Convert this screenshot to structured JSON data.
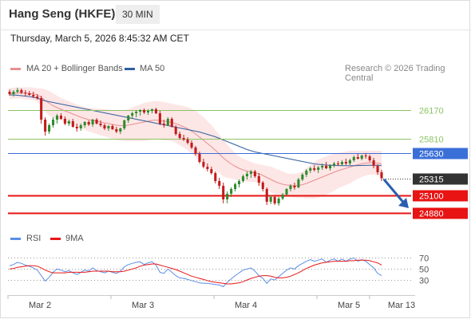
{
  "header": {
    "title": "Hang Seng (HKFE)",
    "timeframe": "30 MIN",
    "datetime": "Thursday, March 5, 2026 8:45:32 AM CET"
  },
  "colors": {
    "ma20": "#e88f8f",
    "bollinger_fill": "#fde3e3",
    "ma50": "#2f5e9e",
    "rsi": "#5b8ee6",
    "rsi_9ma": "#e81717",
    "bull_candle": "#2e8b2e",
    "bear_candle": "#c21b1b",
    "resistance": "#8cc463",
    "pivot": "#3b6fd8",
    "support": "#e81313",
    "last_price_tag": "#333333"
  },
  "legend": {
    "ma20_label": "MA 20 + Bollinger Bands",
    "ma50_label": "MA 50",
    "copyright": "Research © 2026 Trading Central"
  },
  "rsi_legend": {
    "rsi_label": "RSI",
    "ma_label": "9MA"
  },
  "chart_data": [
    {
      "type": "candlestick",
      "instrument": "Hang Seng (HKFE)",
      "interval": "30 MIN",
      "x_ticks": [
        "Mar 2",
        "Mar 3",
        "Mar 4",
        "Mar 5",
        "Mar 13"
      ],
      "ylim": [
        24700,
        26450
      ],
      "levels": [
        {
          "label": "26170",
          "value": 26170,
          "kind": "resistance"
        },
        {
          "label": "25810",
          "value": 25810,
          "kind": "resistance"
        },
        {
          "label": "25630",
          "value": 25630,
          "kind": "pivot"
        },
        {
          "label": "25315",
          "value": 25315,
          "kind": "last"
        },
        {
          "label": "25100",
          "value": 25100,
          "kind": "support"
        },
        {
          "label": "24880",
          "value": 24880,
          "kind": "support"
        }
      ],
      "forecast_arrow": {
        "from": 25300,
        "to": 24940
      },
      "candles_ohlc": [
        [
          26400,
          26430,
          26350,
          26370
        ],
        [
          26370,
          26420,
          26340,
          26400
        ],
        [
          26400,
          26450,
          26380,
          26420
        ],
        [
          26420,
          26440,
          26370,
          26390
        ],
        [
          26390,
          26420,
          26340,
          26380
        ],
        [
          26380,
          26410,
          26350,
          26360
        ],
        [
          26360,
          26400,
          26320,
          26340
        ],
        [
          26340,
          26370,
          26300,
          26320
        ],
        [
          26320,
          26350,
          26000,
          26050
        ],
        [
          26050,
          26080,
          25850,
          25900
        ],
        [
          25900,
          26000,
          25870,
          25980
        ],
        [
          25980,
          26080,
          25950,
          26050
        ],
        [
          26050,
          26120,
          26000,
          26100
        ],
        [
          26100,
          26130,
          26050,
          26060
        ],
        [
          26060,
          26090,
          25980,
          26000
        ],
        [
          26000,
          26050,
          25970,
          26030
        ],
        [
          26030,
          26060,
          25950,
          25960
        ],
        [
          25960,
          26000,
          25900,
          25940
        ],
        [
          25940,
          26000,
          25910,
          25980
        ],
        [
          25980,
          26030,
          25950,
          26020
        ],
        [
          26020,
          26040,
          25970,
          25990
        ],
        [
          25990,
          26060,
          25960,
          26050
        ],
        [
          26050,
          26070,
          25990,
          26000
        ],
        [
          26000,
          26040,
          25960,
          25980
        ],
        [
          25980,
          26000,
          25920,
          25940
        ],
        [
          25940,
          25980,
          25910,
          25970
        ],
        [
          25970,
          25990,
          25920,
          25930
        ],
        [
          25930,
          25960,
          25880,
          25900
        ],
        [
          25900,
          25950,
          25870,
          25940
        ],
        [
          25940,
          26050,
          25920,
          26040
        ],
        [
          26040,
          26110,
          26010,
          26100
        ],
        [
          26100,
          26150,
          26060,
          26130
        ],
        [
          26130,
          26170,
          26080,
          26150
        ],
        [
          26150,
          26180,
          26100,
          26170
        ],
        [
          26170,
          26190,
          26120,
          26140
        ],
        [
          26140,
          26180,
          26110,
          26160
        ],
        [
          26160,
          26190,
          26130,
          26180
        ],
        [
          26180,
          26200,
          26120,
          26130
        ],
        [
          26130,
          26160,
          25980,
          26000
        ],
        [
          26000,
          26050,
          25950,
          25980
        ],
        [
          25980,
          26080,
          25970,
          26060
        ],
        [
          26060,
          26080,
          25950,
          25960
        ],
        [
          25960,
          25980,
          25850,
          25870
        ],
        [
          25870,
          25900,
          25800,
          25820
        ],
        [
          25820,
          25860,
          25780,
          25800
        ],
        [
          25800,
          25830,
          25740,
          25760
        ],
        [
          25760,
          25790,
          25680,
          25700
        ],
        [
          25700,
          25720,
          25600,
          25620
        ],
        [
          25620,
          25650,
          25500,
          25520
        ],
        [
          25520,
          25560,
          25440,
          25460
        ],
        [
          25460,
          25500,
          25400,
          25430
        ],
        [
          25430,
          25460,
          25360,
          25380
        ],
        [
          25380,
          25400,
          25250,
          25280
        ],
        [
          25280,
          25320,
          25180,
          25220
        ],
        [
          25220,
          25260,
          25000,
          25050
        ],
        [
          25050,
          25150,
          25000,
          25120
        ],
        [
          25120,
          25200,
          25080,
          25180
        ],
        [
          25180,
          25260,
          25150,
          25240
        ],
        [
          25240,
          25300,
          25200,
          25280
        ],
        [
          25280,
          25360,
          25260,
          25340
        ],
        [
          25340,
          25400,
          25300,
          25370
        ],
        [
          25370,
          25420,
          25320,
          25400
        ],
        [
          25400,
          25420,
          25320,
          25340
        ],
        [
          25340,
          25380,
          25220,
          25260
        ],
        [
          25260,
          25280,
          25150,
          25180
        ],
        [
          25180,
          25200,
          24980,
          25020
        ],
        [
          25020,
          25100,
          24990,
          25080
        ],
        [
          25080,
          25100,
          24980,
          25000
        ],
        [
          25000,
          25080,
          24970,
          25060
        ],
        [
          25060,
          25130,
          25040,
          25110
        ],
        [
          25110,
          25190,
          25100,
          25180
        ],
        [
          25180,
          25240,
          25150,
          25220
        ],
        [
          25220,
          25260,
          25170,
          25200
        ],
        [
          25200,
          25320,
          25190,
          25300
        ],
        [
          25300,
          25380,
          25280,
          25360
        ],
        [
          25360,
          25430,
          25330,
          25410
        ],
        [
          25410,
          25460,
          25380,
          25440
        ],
        [
          25440,
          25480,
          25400,
          25420
        ],
        [
          25420,
          25470,
          25380,
          25450
        ],
        [
          25450,
          25500,
          25420,
          25470
        ],
        [
          25470,
          25520,
          25430,
          25440
        ],
        [
          25440,
          25490,
          25410,
          25480
        ],
        [
          25480,
          25520,
          25450,
          25500
        ],
        [
          25500,
          25530,
          25470,
          25490
        ],
        [
          25490,
          25540,
          25470,
          25520
        ],
        [
          25520,
          25560,
          25480,
          25500
        ],
        [
          25500,
          25560,
          25480,
          25540
        ],
        [
          25540,
          25600,
          25520,
          25580
        ],
        [
          25580,
          25620,
          25550,
          25560
        ],
        [
          25560,
          25610,
          25540,
          25600
        ],
        [
          25600,
          25630,
          25560,
          25590
        ],
        [
          25590,
          25610,
          25520,
          25540
        ],
        [
          25540,
          25570,
          25440,
          25470
        ],
        [
          25470,
          25490,
          25360,
          25390
        ],
        [
          25390,
          25420,
          25280,
          25315
        ]
      ],
      "ma20": [
        26380,
        26380,
        26385,
        26385,
        26380,
        26378,
        26372,
        26362,
        26330,
        26290,
        26255,
        26225,
        26200,
        26180,
        26160,
        26140,
        26120,
        26100,
        26080,
        26065,
        26050,
        26040,
        26030,
        26020,
        26010,
        26000,
        25990,
        25980,
        25975,
        25975,
        25980,
        25990,
        26000,
        26010,
        26020,
        26030,
        26040,
        26045,
        26040,
        26030,
        26025,
        26015,
        26000,
        25980,
        25960,
        25935,
        25905,
        25870,
        25830,
        25790,
        25750,
        25710,
        25665,
        25620,
        25570,
        25530,
        25495,
        25465,
        25440,
        25420,
        25405,
        25395,
        25385,
        25370,
        25350,
        25325,
        25300,
        25275,
        25255,
        25240,
        25230,
        25225,
        25222,
        25225,
        25235,
        25250,
        25270,
        25290,
        25310,
        25330,
        25350,
        25370,
        25390,
        25410,
        25425,
        25440,
        25455,
        25470,
        25485,
        25495,
        25505,
        25510,
        25510,
        25505,
        25495
      ],
      "bollinger_upper": [
        26450,
        26450,
        26455,
        26455,
        26455,
        26455,
        26450,
        26445,
        26440,
        26430,
        26410,
        26380,
        26350,
        26320,
        26300,
        26280,
        26260,
        26240,
        26220,
        26210,
        26200,
        26195,
        26190,
        26185,
        26180,
        26175,
        26170,
        26165,
        26165,
        26170,
        26180,
        26200,
        26220,
        26240,
        26260,
        26270,
        26280,
        26285,
        26280,
        26270,
        26260,
        26250,
        26240,
        26230,
        26220,
        26205,
        26185,
        26160,
        26120,
        26080,
        26030,
        25980,
        25920,
        25860,
        25800,
        25740,
        25680,
        25630,
        25590,
        25560,
        25540,
        25520,
        25500,
        25490,
        25480,
        25470,
        25460,
        25440,
        25420,
        25400,
        25380,
        25370,
        25370,
        25380,
        25400,
        25440,
        25480,
        25520,
        25550,
        25570,
        25590,
        25610,
        25620,
        25630,
        25640,
        25650,
        25660,
        25660,
        25660,
        25660,
        25660,
        25660,
        25660,
        25660,
        25660
      ],
      "bollinger_lower": [
        26310,
        26310,
        26315,
        26315,
        26305,
        26300,
        26295,
        26280,
        26220,
        26150,
        26100,
        26070,
        26050,
        26040,
        26020,
        26000,
        25980,
        25960,
        25940,
        25920,
        25900,
        25885,
        25870,
        25855,
        25840,
        25825,
        25810,
        25795,
        25785,
        25780,
        25780,
        25780,
        25780,
        25780,
        25780,
        25790,
        25800,
        25805,
        25800,
        25790,
        25790,
        25780,
        25760,
        25730,
        25700,
        25665,
        25625,
        25580,
        25540,
        25500,
        25470,
        25440,
        25410,
        25380,
        25340,
        25320,
        25310,
        25300,
        25290,
        25280,
        25270,
        25270,
        25270,
        25250,
        25220,
        25180,
        25140,
        25110,
        25090,
        25080,
        25080,
        25080,
        25074,
        25070,
        25070,
        25060,
        25060,
        25060,
        25070,
        25090,
        25110,
        25130,
        25160,
        25190,
        25210,
        25230,
        25250,
        25280,
        25310,
        25330,
        25350,
        25360,
        25360,
        25350,
        25330
      ],
      "ma50": [
        26360,
        26360,
        26355,
        26350,
        26345,
        26340,
        26330,
        26320,
        26300,
        26285,
        26275,
        26265,
        26255,
        26245,
        26235,
        26225,
        26215,
        26205,
        26195,
        26185,
        26175,
        26165,
        26155,
        26145,
        26135,
        26125,
        26115,
        26105,
        26095,
        26085,
        26075,
        26065,
        26055,
        26045,
        26035,
        26025,
        26015,
        26005,
        25995,
        25985,
        25975,
        25965,
        25955,
        25945,
        25935,
        25925,
        25915,
        25905,
        25895,
        25880,
        25865,
        25850,
        25835,
        25815,
        25795,
        25775,
        25755,
        25735,
        25715,
        25695,
        25675,
        25660,
        25645,
        25635,
        25625,
        25615,
        25605,
        25595,
        25585,
        25575,
        25565,
        25555,
        25545,
        25535,
        25525,
        25515,
        25505,
        25495,
        25490,
        25485,
        25480,
        25478,
        25476,
        25474,
        25472,
        25472,
        25472,
        25473,
        25474,
        25475,
        25476,
        25477,
        25478,
        25478,
        25475
      ],
      "ma_labels": {
        "ma20": "MA 20 + Bollinger Bands",
        "ma50": "MA 50"
      }
    },
    {
      "type": "line",
      "title": "RSI",
      "y_ticks": [
        70,
        50,
        30
      ],
      "ylim": [
        10,
        85
      ],
      "series": [
        {
          "name": "RSI",
          "values": [
            56,
            58,
            62,
            60,
            57,
            55,
            52,
            48,
            38,
            28,
            35,
            44,
            50,
            48,
            45,
            47,
            43,
            40,
            44,
            48,
            46,
            52,
            47,
            45,
            43,
            46,
            44,
            42,
            46,
            54,
            58,
            60,
            62,
            63,
            58,
            61,
            63,
            57,
            44,
            42,
            50,
            44,
            38,
            34,
            33,
            31,
            29,
            27,
            25,
            24,
            24,
            23,
            22,
            21,
            18,
            26,
            32,
            38,
            43,
            48,
            50,
            52,
            46,
            38,
            33,
            24,
            32,
            30,
            36,
            42,
            48,
            52,
            50,
            56,
            60,
            64,
            67,
            64,
            66,
            68,
            62,
            66,
            68,
            64,
            68,
            64,
            68,
            70,
            64,
            67,
            64,
            58,
            52,
            42,
            38
          ]
        },
        {
          "name": "9MA",
          "values": [
            50,
            51,
            53,
            54,
            55,
            56,
            56,
            55,
            52,
            48,
            45,
            43,
            43,
            43,
            43,
            44,
            44,
            44,
            44,
            44,
            45,
            46,
            46,
            46,
            46,
            46,
            45,
            45,
            45,
            46,
            48,
            50,
            52,
            55,
            57,
            58,
            59,
            59,
            57,
            55,
            53,
            51,
            49,
            46,
            43,
            40,
            37,
            35,
            33,
            31,
            29,
            27,
            26,
            25,
            24,
            23,
            23,
            24,
            25,
            27,
            30,
            33,
            35,
            37,
            38,
            38,
            37,
            35,
            34,
            34,
            35,
            37,
            40,
            43,
            47,
            51,
            54,
            57,
            59,
            61,
            62,
            63,
            64,
            64,
            64,
            64,
            65,
            65,
            66,
            66,
            66,
            65,
            63,
            61,
            57
          ]
        }
      ]
    }
  ]
}
